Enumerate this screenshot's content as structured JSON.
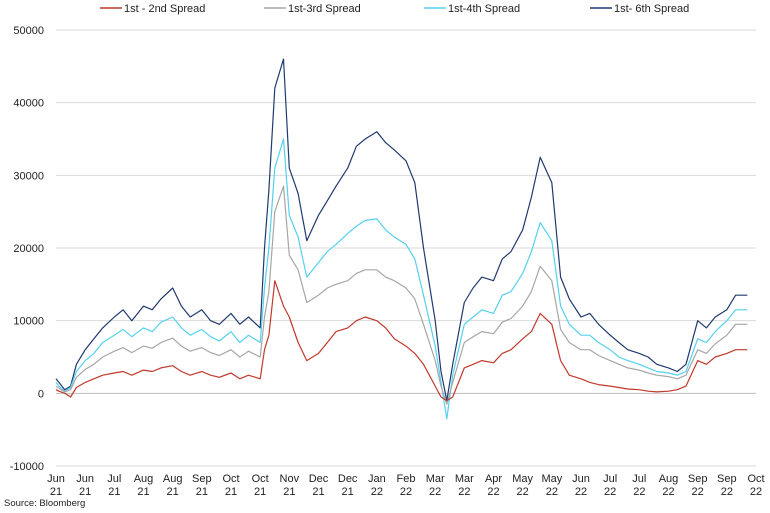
{
  "chart_data": {
    "type": "line",
    "title": "",
    "xlabel": "",
    "ylabel": "",
    "ylim": [
      -10000,
      50000
    ],
    "yticks": [
      -10000,
      0,
      10000,
      20000,
      30000,
      40000,
      50000
    ],
    "ytick_labels": [
      "-10000",
      "0",
      "10000",
      "20000",
      "30000",
      "40000",
      "50000"
    ],
    "grid": true,
    "legend_position": "top",
    "source": "Source: Bloomberg",
    "x_domain": [
      0,
      24
    ],
    "x_ticks": [
      {
        "x": 0,
        "label": [
          "Jun",
          "21"
        ]
      },
      {
        "x": 1,
        "label": [
          "Jun",
          "21"
        ]
      },
      {
        "x": 2,
        "label": [
          "Jul",
          "21"
        ]
      },
      {
        "x": 3,
        "label": [
          "Aug",
          "21"
        ]
      },
      {
        "x": 4,
        "label": [
          "Aug",
          "21"
        ]
      },
      {
        "x": 5,
        "label": [
          "Sep",
          "21"
        ]
      },
      {
        "x": 6,
        "label": [
          "Oct",
          "21"
        ]
      },
      {
        "x": 7,
        "label": [
          "Oct",
          "21"
        ]
      },
      {
        "x": 8,
        "label": [
          "Nov",
          "21"
        ]
      },
      {
        "x": 9,
        "label": [
          "Dec",
          "21"
        ]
      },
      {
        "x": 10,
        "label": [
          "Dec",
          "21"
        ]
      },
      {
        "x": 11,
        "label": [
          "Jan",
          "22"
        ]
      },
      {
        "x": 12,
        "label": [
          "Feb",
          "22"
        ]
      },
      {
        "x": 13,
        "label": [
          "Mar",
          "22"
        ]
      },
      {
        "x": 14,
        "label": [
          "Mar",
          "22"
        ]
      },
      {
        "x": 15,
        "label": [
          "Apr",
          "22"
        ]
      },
      {
        "x": 16,
        "label": [
          "May",
          "22"
        ]
      },
      {
        "x": 17,
        "label": [
          "May",
          "22"
        ]
      },
      {
        "x": 18,
        "label": [
          "Jun",
          "22"
        ]
      },
      {
        "x": 19,
        "label": [
          "Jul",
          "22"
        ]
      },
      {
        "x": 20,
        "label": [
          "Jul",
          "22"
        ]
      },
      {
        "x": 21,
        "label": [
          "Aug",
          "22"
        ]
      },
      {
        "x": 22,
        "label": [
          "Sep",
          "22"
        ]
      },
      {
        "x": 23,
        "label": [
          "Sep",
          "22"
        ]
      },
      {
        "x": 24,
        "label": [
          "Oct",
          "22"
        ]
      }
    ],
    "series": [
      {
        "name": "1st- 6th Spread",
        "color": "#1f3a6e",
        "x": [
          0,
          0.1,
          0.3,
          0.5,
          0.7,
          1,
          1.3,
          1.6,
          2,
          2.3,
          2.6,
          3,
          3.3,
          3.6,
          4,
          4.3,
          4.6,
          5,
          5.3,
          5.6,
          6,
          6.3,
          6.6,
          7,
          7.15,
          7.3,
          7.5,
          7.8,
          8,
          8.3,
          8.6,
          9,
          9.3,
          9.6,
          10,
          10.3,
          10.6,
          11,
          11.3,
          11.6,
          12,
          12.3,
          12.6,
          13,
          13.2,
          13.4,
          13.6,
          14,
          14.3,
          14.6,
          15,
          15.3,
          15.6,
          16,
          16.3,
          16.6,
          17,
          17.3,
          17.6,
          18,
          18.3,
          18.6,
          19,
          19.3,
          19.6,
          20,
          20.3,
          20.6,
          21,
          21.3,
          21.6,
          22,
          22.3,
          22.6,
          23,
          23.3,
          23.5,
          23.7
        ],
        "values": [
          2000,
          1500,
          500,
          1000,
          4000,
          6000,
          7500,
          9000,
          10500,
          11500,
          10000,
          12000,
          11500,
          13000,
          14500,
          12000,
          10500,
          11500,
          10000,
          9500,
          11000,
          9500,
          10500,
          9000,
          20000,
          28000,
          42000,
          46000,
          31000,
          27500,
          21000,
          24500,
          26500,
          28500,
          31000,
          34000,
          35000,
          36000,
          34500,
          33500,
          32000,
          29000,
          20000,
          10000,
          3000,
          -1000,
          4000,
          12500,
          14500,
          16000,
          15500,
          18500,
          19500,
          22500,
          27000,
          32500,
          29000,
          16000,
          13000,
          10500,
          11000,
          9500,
          8000,
          7000,
          6000,
          5500,
          5000,
          4000,
          3500,
          3000,
          4000,
          10000,
          9000,
          10500,
          11500,
          13500,
          13500,
          13500
        ]
      },
      {
        "name": "1st-4th Spread",
        "color": "#55d0ee",
        "x": [
          0,
          0.1,
          0.3,
          0.5,
          0.7,
          1,
          1.3,
          1.6,
          2,
          2.3,
          2.6,
          3,
          3.3,
          3.6,
          4,
          4.3,
          4.6,
          5,
          5.3,
          5.6,
          6,
          6.3,
          6.6,
          7,
          7.15,
          7.3,
          7.5,
          7.8,
          8,
          8.3,
          8.6,
          9,
          9.3,
          9.6,
          10,
          10.3,
          10.6,
          11,
          11.3,
          11.6,
          12,
          12.3,
          12.6,
          13,
          13.2,
          13.4,
          13.6,
          14,
          14.3,
          14.6,
          15,
          15.3,
          15.6,
          16,
          16.3,
          16.6,
          17,
          17.3,
          17.6,
          18,
          18.3,
          18.6,
          19,
          19.3,
          19.6,
          20,
          20.3,
          20.6,
          21,
          21.3,
          21.6,
          22,
          22.3,
          22.6,
          23,
          23.3,
          23.5,
          23.7
        ],
        "values": [
          1500,
          1000,
          300,
          800,
          3000,
          4500,
          5500,
          7000,
          8000,
          8800,
          7800,
          9000,
          8500,
          9800,
          10500,
          9000,
          8000,
          8800,
          7800,
          7200,
          8500,
          7000,
          8000,
          7000,
          14500,
          20000,
          31000,
          35000,
          24500,
          21500,
          16000,
          18000,
          19500,
          20500,
          22000,
          23000,
          23800,
          24000,
          22500,
          21500,
          20500,
          18500,
          13500,
          6500,
          1500,
          -3500,
          2500,
          9500,
          10500,
          11500,
          11000,
          13500,
          14000,
          16500,
          19500,
          23500,
          21000,
          12000,
          9500,
          8000,
          8000,
          7000,
          6000,
          5000,
          4500,
          4000,
          3500,
          3000,
          2800,
          2500,
          3000,
          7500,
          7000,
          8500,
          10000,
          11500,
          11500,
          11500
        ]
      },
      {
        "name": "1st-3rd Spread",
        "color": "#a6a6a6",
        "x": [
          0,
          0.1,
          0.3,
          0.5,
          0.7,
          1,
          1.3,
          1.6,
          2,
          2.3,
          2.6,
          3,
          3.3,
          3.6,
          4,
          4.3,
          4.6,
          5,
          5.3,
          5.6,
          6,
          6.3,
          6.6,
          7,
          7.15,
          7.3,
          7.5,
          7.8,
          8,
          8.3,
          8.6,
          9,
          9.3,
          9.6,
          10,
          10.3,
          10.6,
          11,
          11.3,
          11.6,
          12,
          12.3,
          12.6,
          13,
          13.2,
          13.4,
          13.6,
          14,
          14.3,
          14.6,
          15,
          15.3,
          15.6,
          16,
          16.3,
          16.6,
          17,
          17.3,
          17.6,
          18,
          18.3,
          18.6,
          19,
          19.3,
          19.6,
          20,
          20.3,
          20.6,
          21,
          21.3,
          21.6,
          22,
          22.3,
          22.6,
          23,
          23.3,
          23.5,
          23.7
        ],
        "values": [
          1000,
          700,
          200,
          500,
          2200,
          3300,
          4000,
          5000,
          5800,
          6300,
          5600,
          6500,
          6200,
          7000,
          7600,
          6500,
          5800,
          6300,
          5600,
          5200,
          6000,
          5000,
          5800,
          5000,
          10500,
          14000,
          25000,
          28500,
          19000,
          17000,
          12500,
          13500,
          14500,
          15000,
          15500,
          16500,
          17000,
          17000,
          16000,
          15500,
          14500,
          13000,
          9500,
          4500,
          1000,
          -1500,
          1500,
          7000,
          7800,
          8500,
          8200,
          9800,
          10300,
          12000,
          14000,
          17500,
          15500,
          8800,
          7000,
          6000,
          6000,
          5200,
          4500,
          4000,
          3500,
          3200,
          2800,
          2500,
          2300,
          2000,
          2500,
          6000,
          5500,
          6800,
          8000,
          9500,
          9500,
          9500
        ]
      },
      {
        "name": "1st - 2nd Spread",
        "color": "#c0392b",
        "x": [
          0,
          0.1,
          0.3,
          0.5,
          0.7,
          1,
          1.3,
          1.6,
          2,
          2.3,
          2.6,
          3,
          3.3,
          3.6,
          4,
          4.3,
          4.6,
          5,
          5.3,
          5.6,
          6,
          6.3,
          6.6,
          7,
          7.15,
          7.3,
          7.5,
          7.8,
          8,
          8.3,
          8.6,
          9,
          9.3,
          9.6,
          10,
          10.3,
          10.6,
          11,
          11.3,
          11.6,
          12,
          12.3,
          12.6,
          13,
          13.2,
          13.4,
          13.6,
          14,
          14.3,
          14.6,
          15,
          15.3,
          15.6,
          16,
          16.3,
          16.6,
          17,
          17.3,
          17.6,
          18,
          18.3,
          18.6,
          19,
          19.3,
          19.6,
          20,
          20.3,
          20.6,
          21,
          21.3,
          21.6,
          22,
          22.3,
          22.6,
          23,
          23.3,
          23.5,
          23.7
        ],
        "values": [
          500,
          300,
          0,
          -500,
          800,
          1500,
          2000,
          2500,
          2800,
          3000,
          2500,
          3200,
          3000,
          3500,
          3800,
          3000,
          2500,
          3000,
          2500,
          2200,
          2800,
          2000,
          2500,
          2000,
          6000,
          8000,
          15500,
          12000,
          10500,
          7000,
          4500,
          5500,
          7000,
          8500,
          9000,
          10000,
          10500,
          10000,
          9000,
          7500,
          6500,
          5500,
          4000,
          1000,
          -500,
          -1000,
          -500,
          3500,
          4000,
          4500,
          4200,
          5500,
          6000,
          7500,
          8500,
          11000,
          9500,
          4500,
          2500,
          2000,
          1500,
          1200,
          1000,
          800,
          600,
          500,
          300,
          200,
          300,
          500,
          1000,
          4500,
          4000,
          5000,
          5500,
          6000,
          6000,
          6000
        ]
      }
    ]
  }
}
